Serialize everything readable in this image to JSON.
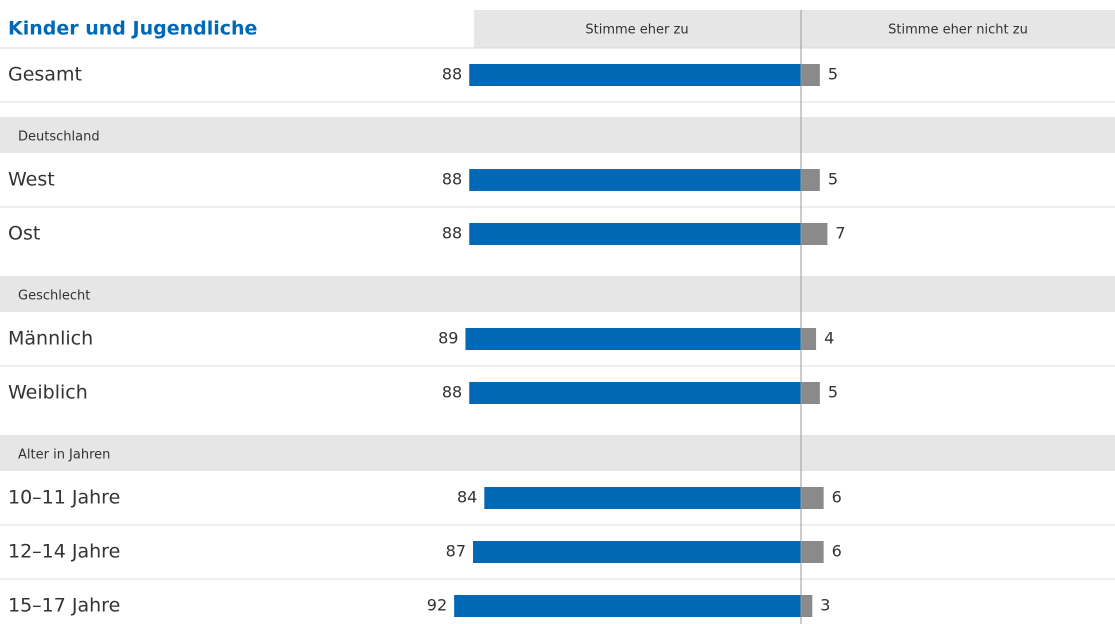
{
  "chart_data": {
    "type": "diverging_bar",
    "title": "Kinder und Jugendliche",
    "series": [
      {
        "name": "Stimme eher zu",
        "color": "#0068b4"
      },
      {
        "name": "Stimme eher nicht zu",
        "color": "#8a8a8a"
      }
    ],
    "groups": [
      {
        "categories": [
          "Gesamt"
        ],
        "series": [
          {
            "values": [
              88
            ]
          },
          {
            "values": [
              5
            ]
          }
        ]
      },
      {
        "title": "Deutschland",
        "categories": [
          "West",
          "Ost"
        ],
        "series": [
          {
            "values": [
              88,
              88
            ]
          },
          {
            "values": [
              5,
              7
            ]
          }
        ]
      },
      {
        "title": "Geschlecht",
        "categories": [
          "Männlich",
          "Weiblich"
        ],
        "series": [
          {
            "values": [
              89,
              88
            ]
          },
          {
            "values": [
              4,
              5
            ]
          }
        ]
      },
      {
        "title": "Alter in Jahren",
        "categories": [
          "10–11 Jahre",
          "12–14 Jahre",
          "15–17 Jahre"
        ],
        "series": [
          {
            "values": [
              84,
              87,
              92
            ]
          },
          {
            "values": [
              6,
              6,
              3
            ]
          }
        ]
      }
    ]
  }
}
